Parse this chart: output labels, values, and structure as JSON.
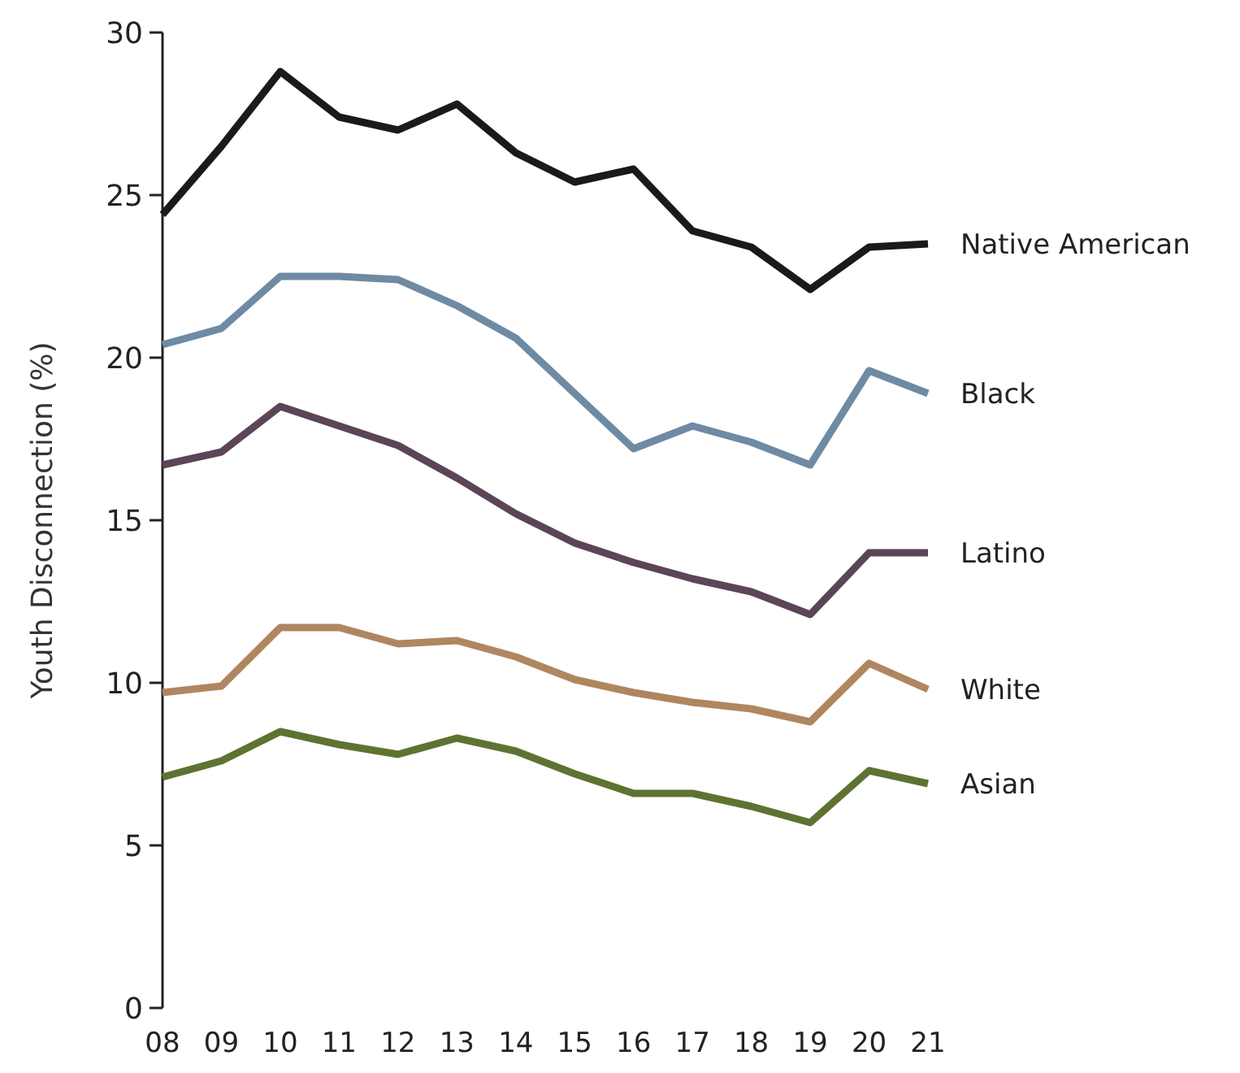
{
  "chart_data": {
    "type": "line",
    "ylabel": "Youth Disconnection (%)",
    "categories": [
      "08",
      "09",
      "10",
      "11",
      "12",
      "13",
      "14",
      "15",
      "16",
      "17",
      "18",
      "19",
      "20",
      "21"
    ],
    "ylim": [
      0,
      30
    ],
    "yticks": [
      0,
      5,
      10,
      15,
      20,
      25,
      30
    ],
    "grid": false,
    "legend": false,
    "marker": "none",
    "line_style": "solid",
    "series": [
      {
        "name": "Native American",
        "color": "#1a1a1a",
        "values": [
          24.4,
          26.5,
          28.8,
          27.4,
          27.0,
          27.8,
          26.3,
          25.4,
          25.8,
          23.9,
          23.4,
          22.1,
          23.4,
          23.5
        ]
      },
      {
        "name": "Black",
        "color": "#6e8ba3",
        "values": [
          20.4,
          20.9,
          22.5,
          22.5,
          22.4,
          21.6,
          20.6,
          18.9,
          17.2,
          17.9,
          17.4,
          16.7,
          19.6,
          18.9
        ]
      },
      {
        "name": "Latino",
        "color": "#5c4556",
        "values": [
          16.7,
          17.1,
          18.5,
          17.9,
          17.3,
          16.3,
          15.2,
          14.3,
          13.7,
          13.2,
          12.8,
          12.1,
          14.0,
          14.0
        ]
      },
      {
        "name": "White",
        "color": "#b08660",
        "values": [
          9.7,
          9.9,
          11.7,
          11.7,
          11.2,
          11.3,
          10.8,
          10.1,
          9.7,
          9.4,
          9.2,
          8.8,
          10.6,
          9.8
        ]
      },
      {
        "name": "Asian",
        "color": "#5e7332",
        "values": [
          7.1,
          7.6,
          8.5,
          8.1,
          7.8,
          8.3,
          7.9,
          7.2,
          6.6,
          6.6,
          6.2,
          5.7,
          7.3,
          6.9
        ]
      }
    ]
  }
}
